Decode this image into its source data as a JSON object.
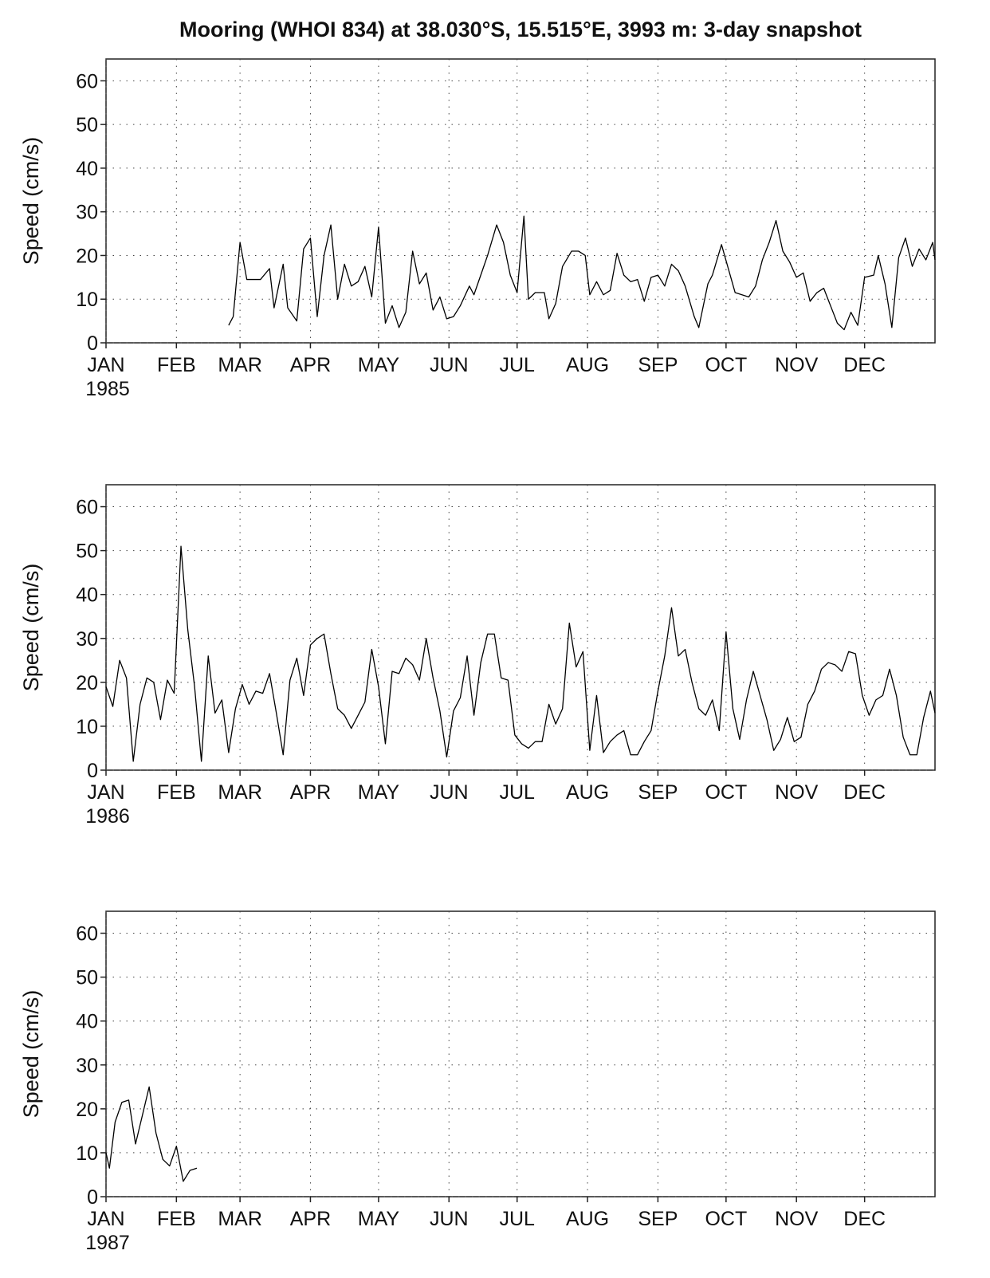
{
  "chart_data": [
    {
      "type": "line",
      "title": "Mooring (WHOI 834) at 38.030°S, 15.515°E, 3993 m: 3-day snapshot",
      "ylabel": "Speed (cm/s)",
      "year_label": "1985",
      "color": "#000000",
      "grid": true,
      "xlim": [
        0,
        365
      ],
      "xticks": [
        {
          "value": 0,
          "label": "JAN"
        },
        {
          "value": 31,
          "label": "FEB"
        },
        {
          "value": 59,
          "label": "MAR"
        },
        {
          "value": 90,
          "label": "APR"
        },
        {
          "value": 120,
          "label": "MAY"
        },
        {
          "value": 151,
          "label": "JUN"
        },
        {
          "value": 181,
          "label": "JUL"
        },
        {
          "value": 212,
          "label": "AUG"
        },
        {
          "value": 243,
          "label": "SEP"
        },
        {
          "value": 273,
          "label": "OCT"
        },
        {
          "value": 304,
          "label": "NOV"
        },
        {
          "value": 334,
          "label": "DEC"
        }
      ],
      "ylim": [
        0,
        65
      ],
      "yticks": [
        0,
        10,
        20,
        30,
        40,
        50,
        60
      ],
      "x": [
        54,
        56,
        59,
        62,
        66,
        68,
        72,
        74,
        78,
        80,
        84,
        87,
        90,
        93,
        96,
        99,
        102,
        105,
        108,
        111,
        114,
        117,
        120,
        123,
        126,
        129,
        132,
        135,
        138,
        141,
        144,
        147,
        150,
        153,
        156,
        160,
        162,
        166,
        168,
        172,
        175,
        178,
        181,
        184,
        186,
        189,
        193,
        195,
        198,
        201,
        205,
        208,
        211,
        213,
        216,
        219,
        222,
        225,
        228,
        231,
        234,
        237,
        240,
        243,
        246,
        249,
        252,
        255,
        259,
        261,
        265,
        267,
        271,
        274,
        277,
        280,
        283,
        286,
        289,
        292,
        295,
        298,
        301,
        304,
        307,
        310,
        313,
        316,
        319,
        322,
        325,
        328,
        331,
        334,
        338,
        340,
        343,
        346,
        349,
        352,
        355,
        358,
        361,
        364,
        365
      ],
      "values": [
        4,
        6,
        23,
        14.5,
        14.5,
        14.5,
        17,
        8,
        18,
        8,
        5,
        21.5,
        24,
        6,
        20,
        27,
        10,
        18,
        13,
        14,
        17.5,
        10.5,
        26.5,
        4.5,
        8.5,
        3.5,
        7,
        21,
        13.5,
        16,
        7.5,
        10.5,
        5.5,
        6,
        8.5,
        13,
        11,
        17,
        20,
        27,
        23,
        15.5,
        11.5,
        29,
        10,
        11.5,
        11.5,
        5.5,
        9,
        17.5,
        21,
        21,
        20,
        11,
        14,
        11,
        12,
        20.5,
        15.5,
        14,
        14.5,
        9.5,
        15,
        15.5,
        13,
        18,
        16.5,
        13,
        6,
        3.5,
        13.5,
        15.5,
        22.5,
        17,
        11.5,
        11,
        10.5,
        13,
        19,
        23,
        28,
        21,
        18.5,
        15,
        16,
        9.5,
        11.5,
        12.5,
        8.5,
        4.5,
        3,
        7,
        4,
        15,
        15.5,
        20,
        13.5,
        3.5,
        19.5,
        24,
        17.5,
        21.5,
        19,
        23,
        19
      ]
    },
    {
      "type": "line",
      "ylabel": "Speed (cm/s)",
      "year_label": "1986",
      "color": "#000000",
      "grid": true,
      "xlim": [
        0,
        365
      ],
      "xticks": [
        {
          "value": 0,
          "label": "JAN"
        },
        {
          "value": 31,
          "label": "FEB"
        },
        {
          "value": 59,
          "label": "MAR"
        },
        {
          "value": 90,
          "label": "APR"
        },
        {
          "value": 120,
          "label": "MAY"
        },
        {
          "value": 151,
          "label": "JUN"
        },
        {
          "value": 181,
          "label": "JUL"
        },
        {
          "value": 212,
          "label": "AUG"
        },
        {
          "value": 243,
          "label": "SEP"
        },
        {
          "value": 273,
          "label": "OCT"
        },
        {
          "value": 304,
          "label": "NOV"
        },
        {
          "value": 334,
          "label": "DEC"
        }
      ],
      "ylim": [
        0,
        65
      ],
      "yticks": [
        0,
        10,
        20,
        30,
        40,
        50,
        60
      ],
      "x": [
        0,
        3,
        6,
        9,
        12,
        15,
        18,
        21,
        24,
        27,
        30,
        33,
        36,
        39,
        42,
        45,
        48,
        51,
        54,
        57,
        60,
        63,
        66,
        69,
        72,
        75,
        78,
        81,
        84,
        87,
        90,
        93,
        96,
        99,
        102,
        105,
        108,
        111,
        114,
        117,
        120,
        123,
        126,
        129,
        132,
        135,
        138,
        141,
        144,
        147,
        150,
        153,
        156,
        159,
        162,
        165,
        168,
        171,
        174,
        177,
        180,
        183,
        186,
        189,
        192,
        195,
        198,
        201,
        204,
        207,
        210,
        213,
        216,
        219,
        222,
        225,
        228,
        231,
        234,
        237,
        240,
        243,
        246,
        249,
        252,
        255,
        258,
        261,
        264,
        267,
        270,
        273,
        276,
        279,
        282,
        285,
        288,
        291,
        294,
        297,
        300,
        303,
        306,
        309,
        312,
        315,
        318,
        321,
        324,
        327,
        330,
        333,
        336,
        339,
        342,
        345,
        348,
        351,
        354,
        357,
        360,
        363,
        365
      ],
      "values": [
        19,
        14.5,
        25,
        21,
        2,
        15,
        21,
        20,
        11.5,
        20.5,
        17.5,
        51,
        32,
        19,
        2,
        26,
        13,
        16,
        4,
        14,
        19.5,
        15,
        18,
        17.5,
        22,
        13,
        3.5,
        20.5,
        25.5,
        17,
        28.5,
        30,
        31,
        22,
        14,
        12.5,
        9.5,
        12.5,
        15.5,
        27.5,
        19,
        6,
        22.5,
        22,
        25.5,
        24,
        20.5,
        30,
        21,
        13.5,
        3,
        13.5,
        16.5,
        26,
        12.5,
        24.5,
        31,
        31,
        21,
        20.5,
        8,
        6,
        5,
        6.5,
        6.5,
        15,
        10.5,
        14,
        33.5,
        23.5,
        27,
        4.5,
        17,
        4,
        6.5,
        8,
        9,
        3.5,
        3.5,
        6.5,
        9,
        18,
        26,
        37,
        26,
        27.5,
        20,
        14,
        12.5,
        16,
        9,
        31.5,
        14,
        7,
        16,
        22.5,
        17,
        11.5,
        4.5,
        7,
        12,
        6.5,
        7.5,
        15,
        18,
        23,
        24.5,
        24,
        22.5,
        27,
        26.5,
        17,
        12.5,
        16,
        17,
        23,
        17,
        7.5,
        3.5,
        3.5,
        12,
        18,
        13
      ]
    },
    {
      "type": "line",
      "ylabel": "Speed (cm/s)",
      "year_label": "1987",
      "color": "#000000",
      "grid": true,
      "xlim": [
        0,
        365
      ],
      "xticks": [
        {
          "value": 0,
          "label": "JAN"
        },
        {
          "value": 31,
          "label": "FEB"
        },
        {
          "value": 59,
          "label": "MAR"
        },
        {
          "value": 90,
          "label": "APR"
        },
        {
          "value": 120,
          "label": "MAY"
        },
        {
          "value": 151,
          "label": "JUN"
        },
        {
          "value": 181,
          "label": "JUL"
        },
        {
          "value": 212,
          "label": "AUG"
        },
        {
          "value": 243,
          "label": "SEP"
        },
        {
          "value": 273,
          "label": "OCT"
        },
        {
          "value": 304,
          "label": "NOV"
        },
        {
          "value": 334,
          "label": "DEC"
        }
      ],
      "ylim": [
        0,
        65
      ],
      "yticks": [
        0,
        10,
        20,
        30,
        40,
        50,
        60
      ],
      "x": [
        0,
        1.5,
        4,
        7,
        10,
        13,
        16,
        19,
        22,
        25,
        28,
        31,
        34,
        37,
        40
      ],
      "values": [
        10,
        6.5,
        17,
        21.5,
        22,
        12,
        18.5,
        25,
        14.5,
        8.5,
        7,
        11.5,
        3.5,
        6,
        6.5
      ]
    }
  ]
}
